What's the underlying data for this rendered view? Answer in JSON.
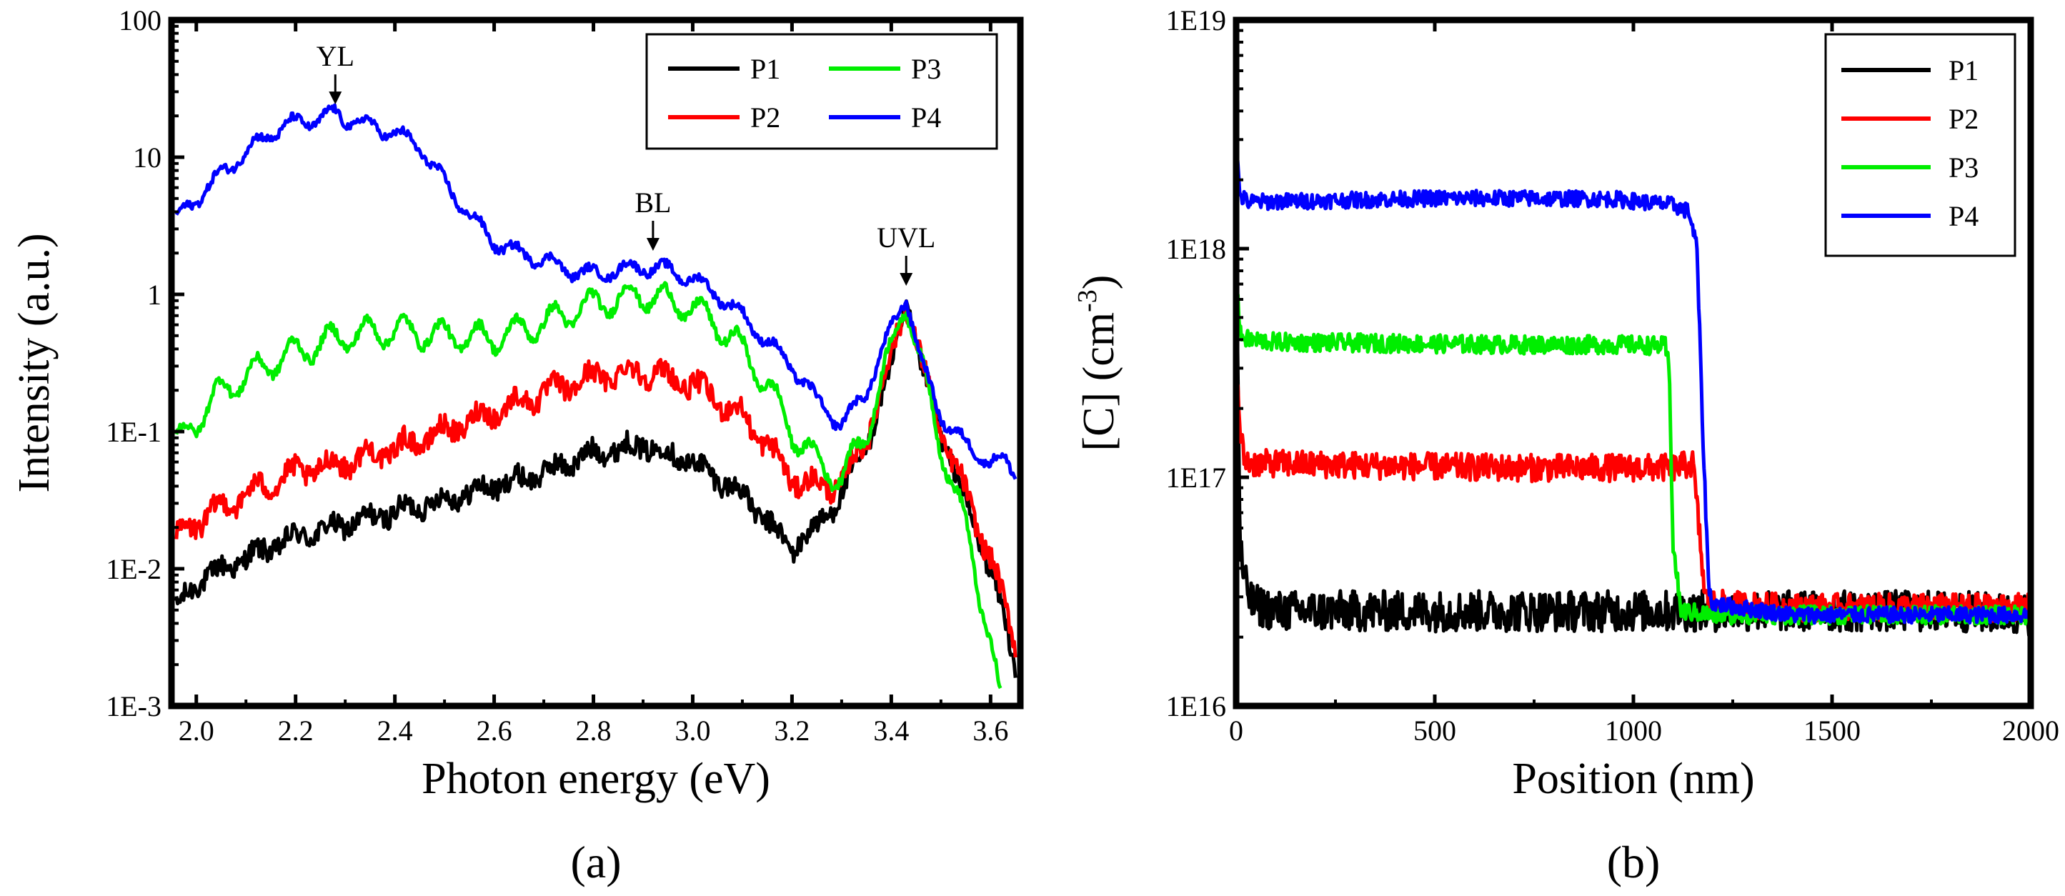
{
  "chart_data": [
    {
      "id": "a",
      "type": "line",
      "panel_label": "(a)",
      "xlabel": "Photon energy (eV)",
      "ylabel": "Intensity (a.u.)",
      "xlim": [
        1.95,
        3.66
      ],
      "ylim": [
        0.001,
        100
      ],
      "yscale": "log",
      "x_ticks": [
        2.0,
        2.2,
        2.4,
        2.6,
        2.8,
        3.0,
        3.2,
        3.4,
        3.6
      ],
      "x_tick_labels": [
        "2.0",
        "2.2",
        "2.4",
        "2.6",
        "2.8",
        "3.0",
        "3.2",
        "3.4",
        "3.6"
      ],
      "y_ticks": [
        0.001,
        0.01,
        0.1,
        1,
        10,
        100
      ],
      "y_tick_labels": [
        "1E-3",
        "1E-2",
        "1E-1",
        "1",
        "10",
        "100"
      ],
      "legend": {
        "position": "top-right",
        "columns": 2,
        "entries": [
          "P1",
          "P3",
          "P2",
          "P4"
        ]
      },
      "annotations": [
        {
          "text": "YL",
          "x": 2.28,
          "y": 21
        },
        {
          "text": "BL",
          "x": 2.92,
          "y": 1.8
        },
        {
          "text": "UVL",
          "x": 3.43,
          "y": 1.0
        }
      ],
      "series": [
        {
          "name": "P1",
          "color": "#000000",
          "x": [
            1.96,
            2.0,
            2.1,
            2.2,
            2.3,
            2.4,
            2.5,
            2.6,
            2.7,
            2.8,
            2.9,
            3.0,
            3.1,
            3.15,
            3.2,
            3.25,
            3.3,
            3.35,
            3.4,
            3.43,
            3.46,
            3.5,
            3.55,
            3.6,
            3.63,
            3.65
          ],
          "y": [
            0.005,
            0.008,
            0.012,
            0.017,
            0.021,
            0.026,
            0.032,
            0.04,
            0.05,
            0.07,
            0.08,
            0.06,
            0.035,
            0.022,
            0.014,
            0.02,
            0.035,
            0.08,
            0.3,
            0.9,
            0.3,
            0.1,
            0.03,
            0.01,
            0.004,
            0.002
          ]
        },
        {
          "name": "P2",
          "color": "#ff0000",
          "x": [
            1.96,
            2.0,
            2.1,
            2.2,
            2.3,
            2.4,
            2.5,
            2.6,
            2.7,
            2.8,
            2.9,
            3.0,
            3.1,
            3.15,
            3.2,
            3.25,
            3.3,
            3.35,
            3.4,
            3.43,
            3.46,
            3.5,
            3.55,
            3.6,
            3.63,
            3.65
          ],
          "y": [
            0.016,
            0.022,
            0.035,
            0.05,
            0.06,
            0.075,
            0.1,
            0.14,
            0.19,
            0.25,
            0.28,
            0.22,
            0.13,
            0.08,
            0.045,
            0.04,
            0.042,
            0.09,
            0.35,
            0.92,
            0.32,
            0.1,
            0.035,
            0.012,
            0.005,
            0.003
          ]
        },
        {
          "name": "P3",
          "color": "#00ee00",
          "x": [
            1.96,
            2.0,
            2.05,
            2.1,
            2.15,
            2.2,
            2.3,
            2.4,
            2.5,
            2.6,
            2.7,
            2.8,
            2.9,
            3.0,
            3.05,
            3.1,
            3.15,
            3.2,
            3.25,
            3.3,
            3.35,
            3.4,
            3.43,
            3.46,
            3.5,
            3.55,
            3.6,
            3.62
          ],
          "y": [
            0.08,
            0.12,
            0.2,
            0.25,
            0.32,
            0.38,
            0.5,
            0.55,
            0.5,
            0.48,
            0.62,
            0.85,
            1.0,
            0.8,
            0.6,
            0.4,
            0.22,
            0.1,
            0.06,
            0.045,
            0.1,
            0.4,
            0.95,
            0.3,
            0.08,
            0.02,
            0.003,
            0.001
          ]
        },
        {
          "name": "P4",
          "color": "#0000ff",
          "x": [
            1.96,
            2.0,
            2.05,
            2.1,
            2.15,
            2.2,
            2.25,
            2.28,
            2.3,
            2.35,
            2.4,
            2.45,
            2.5,
            2.55,
            2.6,
            2.65,
            2.7,
            2.75,
            2.8,
            2.85,
            2.9,
            2.95,
            3.0,
            3.05,
            3.1,
            3.15,
            3.2,
            3.25,
            3.3,
            3.35,
            3.4,
            3.43,
            3.46,
            3.5,
            3.55,
            3.6,
            3.63,
            3.65
          ],
          "y": [
            3.5,
            5.0,
            7.5,
            11,
            15,
            18,
            19,
            21,
            19,
            17,
            15,
            12,
            6.5,
            3.8,
            2.4,
            2.0,
            1.8,
            1.5,
            1.4,
            1.5,
            1.6,
            1.5,
            1.3,
            1.0,
            0.7,
            0.45,
            0.3,
            0.17,
            0.11,
            0.2,
            0.55,
            1.0,
            0.32,
            0.13,
            0.08,
            0.06,
            0.06,
            0.05
          ]
        }
      ]
    },
    {
      "id": "b",
      "type": "line",
      "panel_label": "(b)",
      "xlabel": "Position (nm)",
      "ylabel": "[C] (cm-3)",
      "ylabel_main": "[C] (cm",
      "ylabel_sup": "-3",
      "ylabel_close": ")",
      "xlim": [
        0,
        2000
      ],
      "ylim": [
        1e+16,
        1e+19
      ],
      "yscale": "log",
      "x_ticks": [
        0,
        500,
        1000,
        1500,
        2000
      ],
      "x_tick_labels": [
        "0",
        "500",
        "1000",
        "1500",
        "2000"
      ],
      "y_ticks": [
        1e+16,
        1e+17,
        1e+18,
        1e+19
      ],
      "y_tick_labels": [
        "1E16",
        "1E17",
        "1E18",
        "1E19"
      ],
      "legend": {
        "position": "top-right",
        "columns": 1,
        "entries": [
          "P1",
          "P2",
          "P3",
          "P4"
        ]
      },
      "series": [
        {
          "name": "P1",
          "color": "#000000",
          "x": [
            0,
            10,
            20,
            40,
            100,
            300,
            600,
            900,
            1100,
            1200,
            1400,
            1600,
            1800,
            2000
          ],
          "y": [
            1e+18,
            5e+16,
            3.5e+16,
            2.8e+16,
            2.6e+16,
            2.6e+16,
            2.6e+16,
            2.6e+16,
            2.6e+16,
            2.6e+16,
            2.6e+16,
            2.6e+16,
            2.6e+16,
            2.5e+16
          ]
        },
        {
          "name": "P2",
          "color": "#ff0000",
          "x": [
            0,
            10,
            20,
            40,
            100,
            400,
            700,
            1000,
            1100,
            1150,
            1165,
            1180,
            1200,
            1400,
            1600,
            1800,
            2000
          ],
          "y": [
            3e+17,
            1.6e+17,
            1.2e+17,
            1.15e+17,
            1.15e+17,
            1.12e+17,
            1.1e+17,
            1.1e+17,
            1.1e+17,
            1.15e+17,
            6e+16,
            3e+16,
            2.8e+16,
            2.7e+16,
            2.7e+16,
            2.7e+16,
            2.7e+16
          ]
        },
        {
          "name": "P3",
          "color": "#00ee00",
          "x": [
            0,
            10,
            30,
            100,
            400,
            700,
            1000,
            1080,
            1090,
            1100,
            1120,
            1200,
            1400,
            1600,
            1800,
            2000
          ],
          "y": [
            8e+17,
            4.2e+17,
            4e+17,
            3.9e+17,
            3.85e+17,
            3.8e+17,
            3.8e+17,
            3.75e+17,
            3e+17,
            5e+16,
            2.6e+16,
            2.5e+16,
            2.5e+16,
            2.5e+16,
            2.5e+16,
            2.5e+16
          ]
        },
        {
          "name": "P4",
          "color": "#0000ff",
          "x": [
            0,
            10,
            30,
            200,
            500,
            700,
            950,
            1100,
            1140,
            1160,
            1175,
            1190,
            1200,
            1400,
            1600,
            1800,
            2000
          ],
          "y": [
            2.8e+18,
            1.7e+18,
            1.6e+18,
            1.62e+18,
            1.66e+18,
            1.66e+18,
            1.65e+18,
            1.55e+18,
            1.45e+18,
            1e+18,
            1.5e+17,
            3.2e+16,
            2.8e+16,
            2.5e+16,
            2.5e+16,
            2.5e+16,
            2.5e+16
          ]
        }
      ]
    }
  ]
}
